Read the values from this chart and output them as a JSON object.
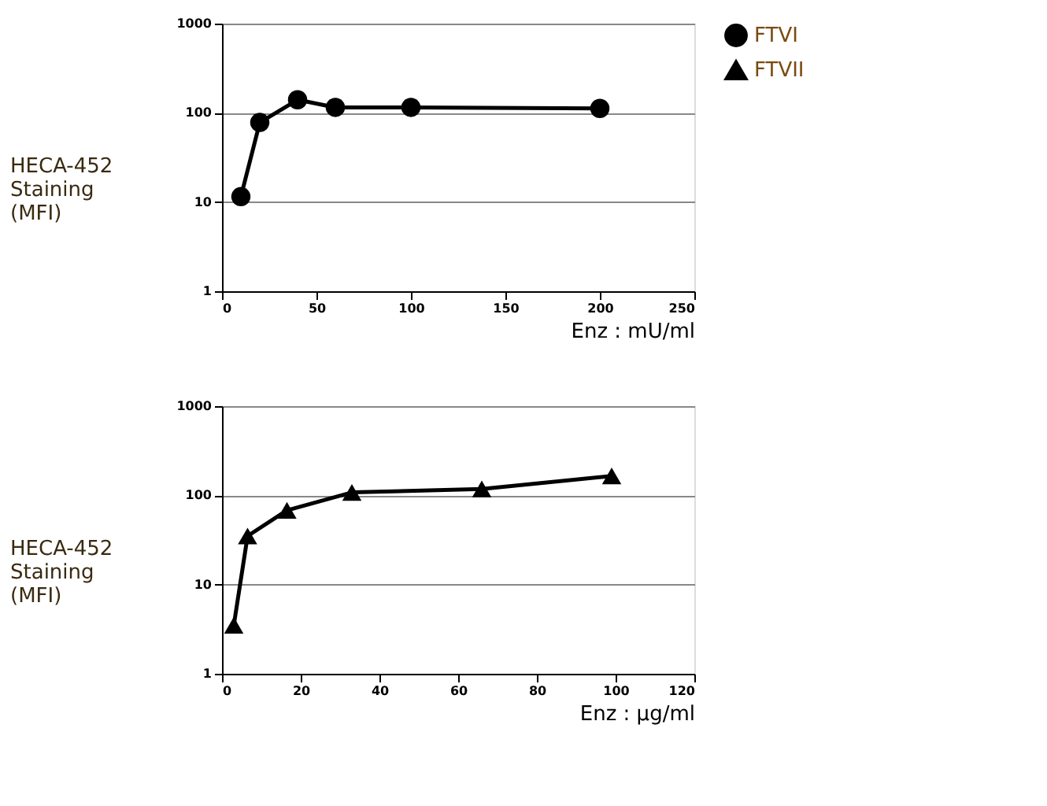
{
  "chart_data": [
    {
      "type": "line",
      "ylabel": "HECA-452\nStaining\n(MFI)",
      "xlabel": "Enz : mU/ml",
      "x": [
        10,
        20,
        40,
        60,
        100,
        200
      ],
      "series": [
        {
          "name": "FTVI",
          "color": "#000000",
          "values": [
            11.5,
            78,
            140,
            115,
            115,
            112
          ]
        }
      ],
      "log": "y",
      "xlim": [
        0,
        250
      ],
      "xticks": [
        0,
        50,
        100,
        150,
        200,
        250
      ],
      "ylim": [
        1,
        1000
      ],
      "yticks": [
        1,
        10,
        100,
        1000
      ],
      "grid": "y",
      "legend": "right",
      "marker": "circle",
      "line_style": "solid"
    },
    {
      "type": "line",
      "ylabel": "HECA-452\nStaining\n(MFI)",
      "xlabel": "Enz : µg/ml",
      "x": [
        3,
        6.5,
        16.5,
        33,
        66,
        99
      ],
      "series": [
        {
          "name": "FTVII",
          "color": "#000000",
          "values": [
            3.5,
            35,
            68,
            108,
            118,
            165
          ]
        }
      ],
      "log": "y",
      "xlim": [
        0,
        120
      ],
      "xticks": [
        0,
        20,
        40,
        60,
        80,
        100,
        120
      ],
      "ylim": [
        1,
        1000
      ],
      "yticks": [
        1,
        10,
        100,
        1000
      ],
      "grid": "y",
      "legend": "right",
      "marker": "triangle",
      "line_style": "solid"
    }
  ]
}
